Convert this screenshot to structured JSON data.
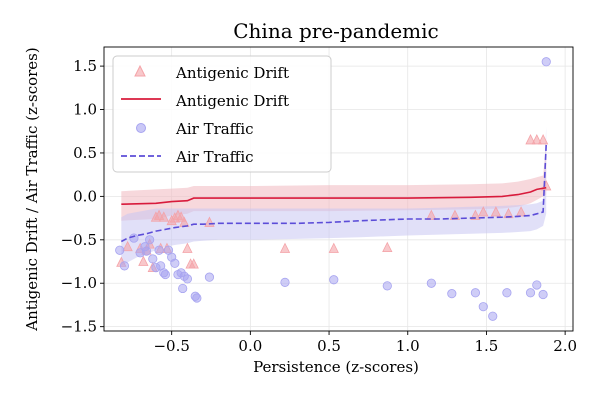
{
  "chart_data": {
    "type": "scatter",
    "title": "China pre-pandemic",
    "xlabel": "Persistence (z-scores)",
    "ylabel": "Antigenic Drift / Air Traffic (z-scores)",
    "xlim": [
      -0.93,
      2.05
    ],
    "ylim": [
      -1.55,
      1.72
    ],
    "xticks": [
      -0.5,
      0.0,
      0.5,
      1.0,
      1.5,
      2.0
    ],
    "xtick_labels": [
      "−0.5",
      "0.0",
      "0.5",
      "1.0",
      "1.5",
      "2.0"
    ],
    "yticks": [
      -1.5,
      -1.0,
      -0.5,
      0.0,
      0.5,
      1.0,
      1.5
    ],
    "ytick_labels": [
      "−1.5",
      "−1.0",
      "−0.5",
      "0.0",
      "0.5",
      "1.0",
      "1.5"
    ],
    "grid": true,
    "legend_position": "upper-left",
    "legend": [
      {
        "label": "Antigenic Drift",
        "kind": "triangle-marker",
        "color": "#f4a3a8"
      },
      {
        "label": "Antigenic Drift",
        "kind": "solid-line",
        "color": "#d81b3c"
      },
      {
        "label": "Air Traffic",
        "kind": "circle-marker",
        "color": "#a7a4f0"
      },
      {
        "label": "Air Traffic",
        "kind": "dashed-line",
        "color": "#5c4dd8"
      }
    ],
    "series": [
      {
        "name": "Antigenic Drift",
        "kind": "scatter",
        "marker": "triangle",
        "color": "#f4a3a8",
        "points": [
          [
            -0.82,
            -0.76
          ],
          [
            -0.78,
            -0.58
          ],
          [
            -0.7,
            -0.6
          ],
          [
            -0.68,
            -0.75
          ],
          [
            -0.66,
            -0.62
          ],
          [
            -0.64,
            -0.55
          ],
          [
            -0.62,
            -0.82
          ],
          [
            -0.6,
            -0.24
          ],
          [
            -0.58,
            -0.22
          ],
          [
            -0.57,
            -0.6
          ],
          [
            -0.55,
            -0.24
          ],
          [
            -0.53,
            -0.6
          ],
          [
            -0.5,
            -0.28
          ],
          [
            -0.48,
            -0.25
          ],
          [
            -0.46,
            -0.22
          ],
          [
            -0.44,
            -0.24
          ],
          [
            -0.42,
            -0.3
          ],
          [
            -0.4,
            -0.6
          ],
          [
            -0.38,
            -0.78
          ],
          [
            -0.36,
            -0.78
          ],
          [
            -0.26,
            -0.3
          ],
          [
            0.22,
            -0.6
          ],
          [
            0.53,
            -0.6
          ],
          [
            0.87,
            -0.59
          ],
          [
            1.15,
            -0.22
          ],
          [
            1.3,
            -0.22
          ],
          [
            1.43,
            -0.22
          ],
          [
            1.48,
            -0.18
          ],
          [
            1.56,
            -0.18
          ],
          [
            1.64,
            -0.2
          ],
          [
            1.72,
            -0.18
          ],
          [
            1.78,
            0.65
          ],
          [
            1.82,
            0.65
          ],
          [
            1.86,
            0.65
          ],
          [
            1.88,
            0.12
          ]
        ]
      },
      {
        "name": "Antigenic Drift",
        "kind": "line",
        "style": "solid",
        "color": "#d81b3c",
        "band_color": "#f0b8c0",
        "points": [
          [
            -0.82,
            -0.09
          ],
          [
            -0.6,
            -0.08
          ],
          [
            -0.5,
            -0.06
          ],
          [
            -0.4,
            -0.05
          ],
          [
            -0.36,
            -0.02
          ],
          [
            -0.2,
            -0.02
          ],
          [
            0.0,
            -0.02
          ],
          [
            0.5,
            -0.02
          ],
          [
            1.0,
            -0.02
          ],
          [
            1.4,
            -0.01
          ],
          [
            1.6,
            0.0
          ],
          [
            1.7,
            0.02
          ],
          [
            1.78,
            0.05
          ],
          [
            1.82,
            0.08
          ],
          [
            1.88,
            0.1
          ]
        ],
        "band_upper": [
          [
            -0.82,
            0.06
          ],
          [
            -0.6,
            0.08
          ],
          [
            -0.5,
            0.09
          ],
          [
            -0.4,
            0.1
          ],
          [
            -0.36,
            0.12
          ],
          [
            -0.2,
            0.12
          ],
          [
            0.0,
            0.12
          ],
          [
            0.5,
            0.13
          ],
          [
            1.0,
            0.13
          ],
          [
            1.4,
            0.14
          ],
          [
            1.6,
            0.15
          ],
          [
            1.7,
            0.17
          ],
          [
            1.78,
            0.2
          ],
          [
            1.82,
            0.22
          ],
          [
            1.86,
            0.24
          ],
          [
            1.88,
            0.6
          ]
        ],
        "band_lower": [
          [
            -0.82,
            -0.28
          ],
          [
            -0.6,
            -0.26
          ],
          [
            -0.5,
            -0.22
          ],
          [
            -0.4,
            -0.2
          ],
          [
            -0.36,
            -0.17
          ],
          [
            -0.2,
            -0.17
          ],
          [
            0.0,
            -0.17
          ],
          [
            0.5,
            -0.17
          ],
          [
            1.0,
            -0.16
          ],
          [
            1.4,
            -0.15
          ],
          [
            1.6,
            -0.14
          ],
          [
            1.7,
            -0.12
          ],
          [
            1.78,
            -0.08
          ],
          [
            1.82,
            -0.04
          ],
          [
            1.86,
            0.0
          ],
          [
            1.88,
            0.02
          ]
        ]
      },
      {
        "name": "Air Traffic",
        "kind": "scatter",
        "marker": "circle",
        "color": "#a7a4f0",
        "points": [
          [
            -0.83,
            -0.62
          ],
          [
            -0.8,
            -0.8
          ],
          [
            -0.74,
            -0.48
          ],
          [
            -0.7,
            -0.65
          ],
          [
            -0.67,
            -0.58
          ],
          [
            -0.66,
            -0.63
          ],
          [
            -0.64,
            -0.5
          ],
          [
            -0.62,
            -0.72
          ],
          [
            -0.6,
            -0.82
          ],
          [
            -0.58,
            -0.62
          ],
          [
            -0.57,
            -0.8
          ],
          [
            -0.55,
            -0.88
          ],
          [
            -0.54,
            -0.9
          ],
          [
            -0.52,
            -0.62
          ],
          [
            -0.5,
            -0.7
          ],
          [
            -0.48,
            -0.77
          ],
          [
            -0.46,
            -0.9
          ],
          [
            -0.44,
            -0.88
          ],
          [
            -0.43,
            -1.06
          ],
          [
            -0.42,
            -0.92
          ],
          [
            -0.4,
            -0.95
          ],
          [
            -0.35,
            -1.15
          ],
          [
            -0.34,
            -1.17
          ],
          [
            -0.26,
            -0.93
          ],
          [
            0.22,
            -0.99
          ],
          [
            0.53,
            -0.96
          ],
          [
            0.87,
            -1.03
          ],
          [
            1.15,
            -1.0
          ],
          [
            1.28,
            -1.12
          ],
          [
            1.43,
            -1.11
          ],
          [
            1.48,
            -1.27
          ],
          [
            1.54,
            -1.38
          ],
          [
            1.63,
            -1.11
          ],
          [
            1.78,
            -1.11
          ],
          [
            1.82,
            -1.02
          ],
          [
            1.86,
            -1.13
          ],
          [
            1.88,
            1.55
          ]
        ]
      },
      {
        "name": "Air Traffic",
        "kind": "line",
        "style": "dashed",
        "color": "#5c4dd8",
        "band_color": "#c9c6f2",
        "points": [
          [
            -0.82,
            -0.52
          ],
          [
            -0.78,
            -0.48
          ],
          [
            -0.72,
            -0.45
          ],
          [
            -0.66,
            -0.43
          ],
          [
            -0.6,
            -0.4
          ],
          [
            -0.54,
            -0.38
          ],
          [
            -0.48,
            -0.36
          ],
          [
            -0.4,
            -0.34
          ],
          [
            -0.36,
            -0.32
          ],
          [
            -0.3,
            -0.32
          ],
          [
            -0.2,
            -0.31
          ],
          [
            0.0,
            -0.31
          ],
          [
            0.3,
            -0.31
          ],
          [
            0.5,
            -0.3
          ],
          [
            0.7,
            -0.28
          ],
          [
            1.0,
            -0.26
          ],
          [
            1.2,
            -0.26
          ],
          [
            1.4,
            -0.25
          ],
          [
            1.6,
            -0.24
          ],
          [
            1.7,
            -0.23
          ],
          [
            1.78,
            -0.22
          ],
          [
            1.82,
            -0.2
          ],
          [
            1.86,
            -0.18
          ],
          [
            1.88,
            0.6
          ]
        ],
        "band_upper": [
          [
            -0.82,
            -0.24
          ],
          [
            -0.78,
            -0.2
          ],
          [
            -0.72,
            -0.18
          ],
          [
            -0.66,
            -0.16
          ],
          [
            -0.6,
            -0.14
          ],
          [
            -0.54,
            -0.14
          ],
          [
            -0.48,
            -0.14
          ],
          [
            -0.4,
            -0.14
          ],
          [
            -0.36,
            -0.14
          ],
          [
            -0.3,
            -0.14
          ],
          [
            -0.2,
            -0.14
          ],
          [
            0.0,
            -0.14
          ],
          [
            0.3,
            -0.14
          ],
          [
            0.5,
            -0.14
          ],
          [
            0.7,
            -0.14
          ],
          [
            1.0,
            -0.14
          ],
          [
            1.2,
            -0.13
          ],
          [
            1.4,
            -0.12
          ],
          [
            1.6,
            -0.11
          ],
          [
            1.7,
            -0.1
          ],
          [
            1.78,
            -0.09
          ],
          [
            1.82,
            -0.08
          ],
          [
            1.86,
            -0.05
          ],
          [
            1.88,
            0.8
          ]
        ],
        "band_lower": [
          [
            -0.82,
            -0.8
          ],
          [
            -0.78,
            -0.76
          ],
          [
            -0.72,
            -0.7
          ],
          [
            -0.66,
            -0.66
          ],
          [
            -0.6,
            -0.62
          ],
          [
            -0.54,
            -0.58
          ],
          [
            -0.48,
            -0.56
          ],
          [
            -0.4,
            -0.54
          ],
          [
            -0.36,
            -0.52
          ],
          [
            -0.3,
            -0.51
          ],
          [
            -0.2,
            -0.5
          ],
          [
            0.0,
            -0.5
          ],
          [
            0.3,
            -0.49
          ],
          [
            0.5,
            -0.48
          ],
          [
            0.7,
            -0.47
          ],
          [
            1.0,
            -0.45
          ],
          [
            1.2,
            -0.44
          ],
          [
            1.4,
            -0.43
          ],
          [
            1.6,
            -0.42
          ],
          [
            1.7,
            -0.41
          ],
          [
            1.78,
            -0.4
          ],
          [
            1.82,
            -0.38
          ],
          [
            1.86,
            -0.34
          ],
          [
            1.88,
            -0.2
          ]
        ]
      }
    ]
  }
}
